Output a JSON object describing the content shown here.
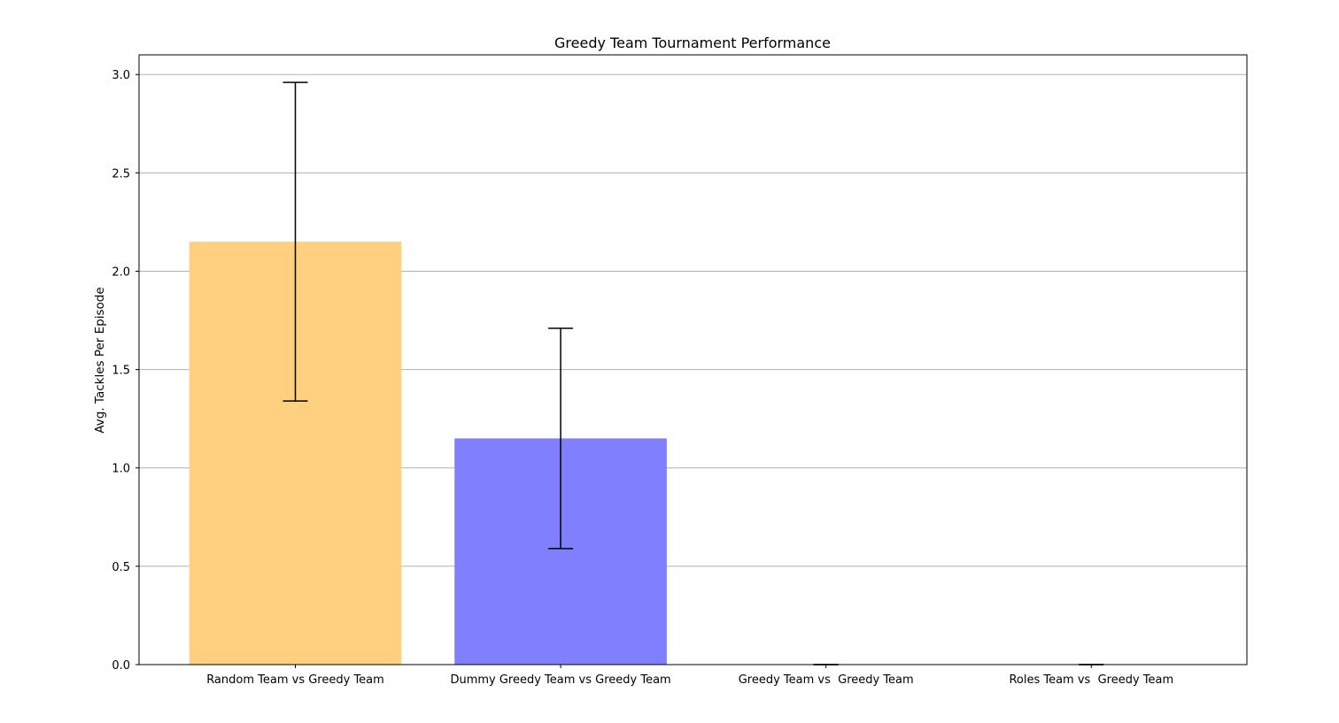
{
  "chart_data": {
    "type": "bar",
    "title": "Greedy Team Tournament Performance",
    "xlabel": "",
    "ylabel": "Avg. Tackles Per Episode",
    "categories": [
      "Random Team vs Greedy Team",
      "Dummy Greedy Team vs Greedy Team",
      "Greedy Team vs  Greedy Team",
      "Roles Team vs  Greedy Team"
    ],
    "values": [
      2.15,
      1.15,
      0.0,
      0.0
    ],
    "errors": [
      0.81,
      0.56,
      0.0,
      0.0
    ],
    "colors": [
      "#fed080",
      "#8080ff",
      "#fed080",
      "#8080ff"
    ],
    "ylim": [
      0,
      3.1
    ],
    "yticks": [
      0.0,
      0.5,
      1.0,
      1.5,
      2.0,
      2.5,
      3.0
    ],
    "ytick_labels": [
      "0.0",
      "0.5",
      "1.0",
      "1.5",
      "2.0",
      "2.5",
      "3.0"
    ],
    "grid": "y",
    "legend": "none"
  }
}
